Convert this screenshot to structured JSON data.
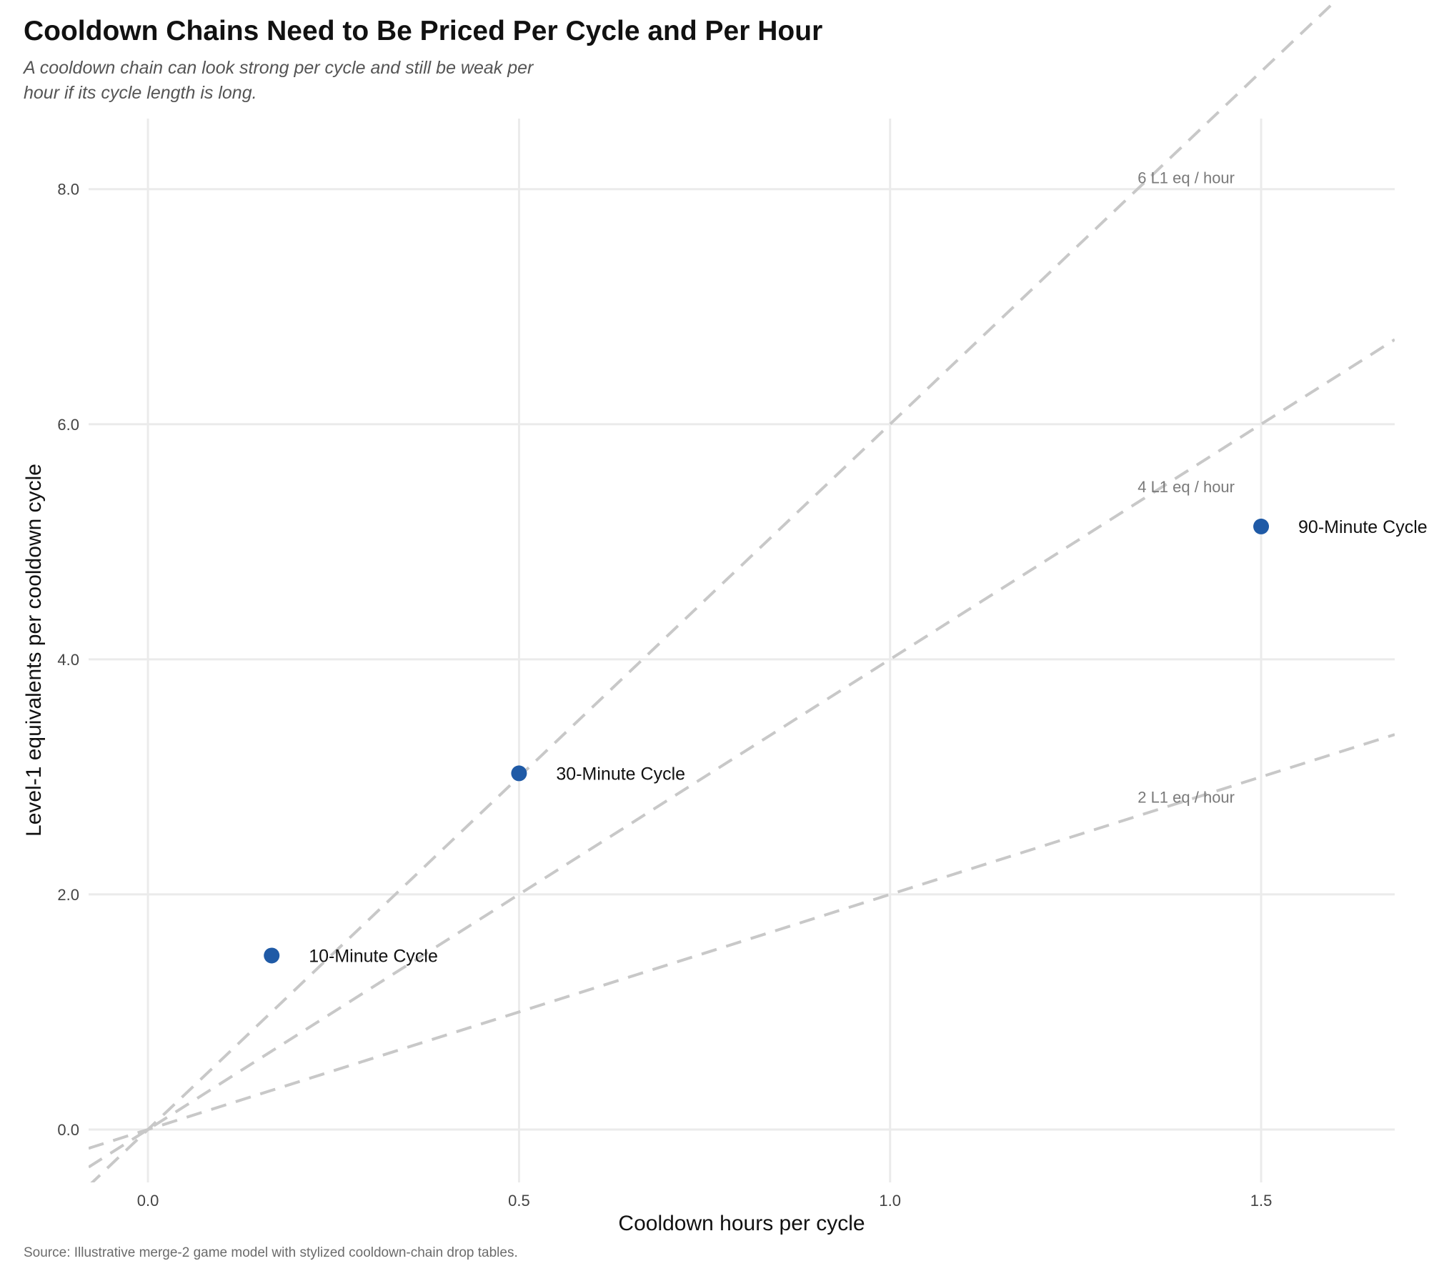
{
  "title": "Cooldown Chains Need to Be Priced Per Cycle and Per Hour",
  "subtitle": "A cooldown chain can look strong per cycle and still be weak per hour if its cycle length is long.",
  "caption": "Source: Illustrative merge-2 game model with stylized cooldown-chain drop tables.",
  "chart_data": {
    "type": "scatter",
    "xlabel": "Cooldown hours per cycle",
    "ylabel": "Level-1 equivalents per cooldown cycle",
    "xlim": [
      -0.08,
      1.68
    ],
    "ylim": [
      -0.45,
      8.6
    ],
    "x_ticks": [
      0.0,
      0.5,
      1.0,
      1.5
    ],
    "x_tick_labels": [
      "0.0",
      "0.5",
      "1.0",
      "1.5"
    ],
    "y_ticks": [
      0.0,
      2.0,
      4.0,
      6.0,
      8.0
    ],
    "y_tick_labels": [
      "0.0",
      "2.0",
      "4.0",
      "6.0",
      "8.0"
    ],
    "grid": true,
    "point_color": "#1f5aa6",
    "reference_line_color": "#c8c8c8",
    "points": [
      {
        "x": 0.1667,
        "y": 1.48,
        "label": "10-Minute Cycle"
      },
      {
        "x": 0.5,
        "y": 3.03,
        "label": "30-Minute Cycle"
      },
      {
        "x": 1.5,
        "y": 5.13,
        "label": "90-Minute Cycle"
      }
    ],
    "reference_lines": [
      {
        "slope": 6,
        "label": "6 L1 eq / hour"
      },
      {
        "slope": 4,
        "label": "4 L1 eq / hour"
      },
      {
        "slope": 2,
        "label": "2 L1 eq / hour"
      }
    ]
  }
}
